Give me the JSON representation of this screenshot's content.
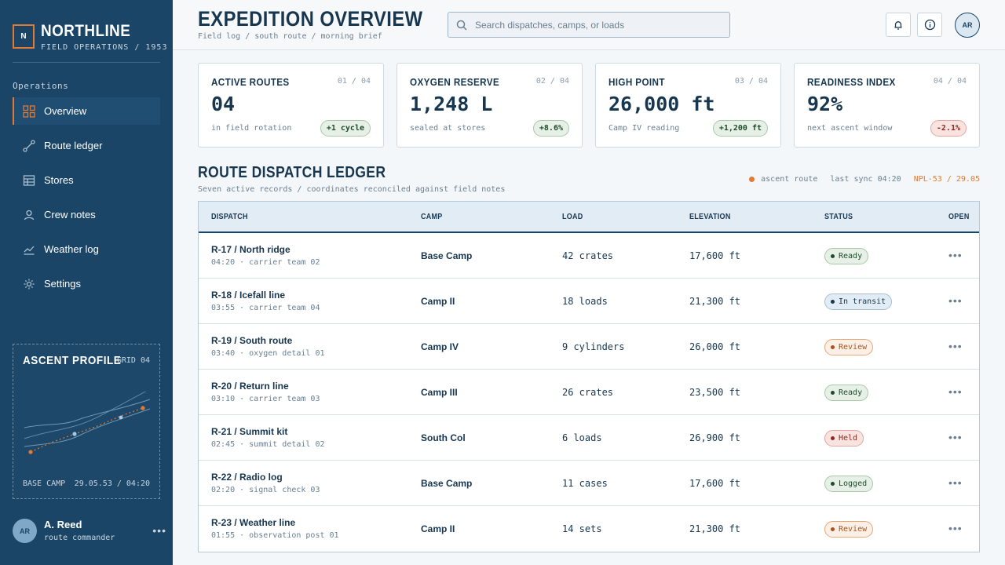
{
  "brand": {
    "logo": "N",
    "name": "NORTHLINE",
    "sub": "FIELD OPERATIONS / 1953"
  },
  "nav": {
    "section": "Operations",
    "items": [
      {
        "label": "Overview",
        "icon": "grid-icon"
      },
      {
        "label": "Route ledger",
        "icon": "route-icon"
      },
      {
        "label": "Stores",
        "icon": "table-icon"
      },
      {
        "label": "Crew notes",
        "icon": "person-icon"
      },
      {
        "label": "Weather log",
        "icon": "chart-icon"
      },
      {
        "label": "Settings",
        "icon": "gear-icon"
      }
    ]
  },
  "profile": {
    "title": "ASCENT PROFILE",
    "grid": "GRID 04",
    "camp": "BASE CAMP",
    "stamp": "29.05.53 / 04:20"
  },
  "user": {
    "initials": "AR",
    "name": "A. Reed",
    "role": "route commander"
  },
  "header": {
    "title": "EXPEDITION OVERVIEW",
    "crumb": "Field log / south route / morning brief",
    "search_placeholder": "Search dispatches, camps, or loads",
    "avatar": "AR"
  },
  "kpis": [
    {
      "label": "ACTIVE ROUTES",
      "index": "01 / 04",
      "value": "04",
      "note": "in field rotation",
      "delta": "+1 cycle",
      "trend": "pos"
    },
    {
      "label": "OXYGEN RESERVE",
      "index": "02 / 04",
      "value": "1,248 L",
      "note": "sealed at stores",
      "delta": "+8.6%",
      "trend": "pos"
    },
    {
      "label": "HIGH POINT",
      "index": "03 / 04",
      "value": "26,000 ft",
      "note": "Camp IV reading",
      "delta": "+1,200 ft",
      "trend": "pos"
    },
    {
      "label": "READINESS INDEX",
      "index": "04 / 04",
      "value": "92%",
      "note": "next ascent window",
      "delta": "-2.1%",
      "trend": "neg"
    }
  ],
  "ledger": {
    "title": "ROUTE DISPATCH LEDGER",
    "sub": "Seven active records / coordinates reconciled against field notes",
    "legend": "ascent route",
    "sync": "last sync 04:20",
    "code": "NPL-53 / 29.05",
    "columns": [
      "DISPATCH",
      "CAMP",
      "LOAD",
      "ELEVATION",
      "STATUS",
      "OPEN"
    ],
    "rows": [
      {
        "name": "R-17 / North ridge",
        "meta": "04:20 · carrier team 02",
        "camp": "Base Camp",
        "load": "42 crates",
        "elev": "17,600 ft",
        "status": "Ready",
        "kind": "ready"
      },
      {
        "name": "R-18 / Icefall line",
        "meta": "03:55 · carrier team 04",
        "camp": "Camp II",
        "load": "18 loads",
        "elev": "21,300 ft",
        "status": "In transit",
        "kind": "transit"
      },
      {
        "name": "R-19 / South route",
        "meta": "03:40 · oxygen detail 01",
        "camp": "Camp IV",
        "load": "9 cylinders",
        "elev": "26,000 ft",
        "status": "Review",
        "kind": "review"
      },
      {
        "name": "R-20 / Return line",
        "meta": "03:10 · carrier team 03",
        "camp": "Camp III",
        "load": "26 crates",
        "elev": "23,500 ft",
        "status": "Ready",
        "kind": "ready"
      },
      {
        "name": "R-21 / Summit kit",
        "meta": "02:45 · summit detail 02",
        "camp": "South Col",
        "load": "6 loads",
        "elev": "26,900 ft",
        "status": "Held",
        "kind": "held"
      },
      {
        "name": "R-22 / Radio log",
        "meta": "02:20 · signal check 03",
        "camp": "Base Camp",
        "load": "11 cases",
        "elev": "17,600 ft",
        "status": "Logged",
        "kind": "logged"
      },
      {
        "name": "R-23 / Weather line",
        "meta": "01:55 · observation post 01",
        "camp": "Camp II",
        "load": "14 sets",
        "elev": "21,300 ft",
        "status": "Review",
        "kind": "review"
      }
    ]
  },
  "colors": {
    "sidebar": "#1b4566",
    "accent": "#e07a34",
    "ink": "#17364f"
  }
}
